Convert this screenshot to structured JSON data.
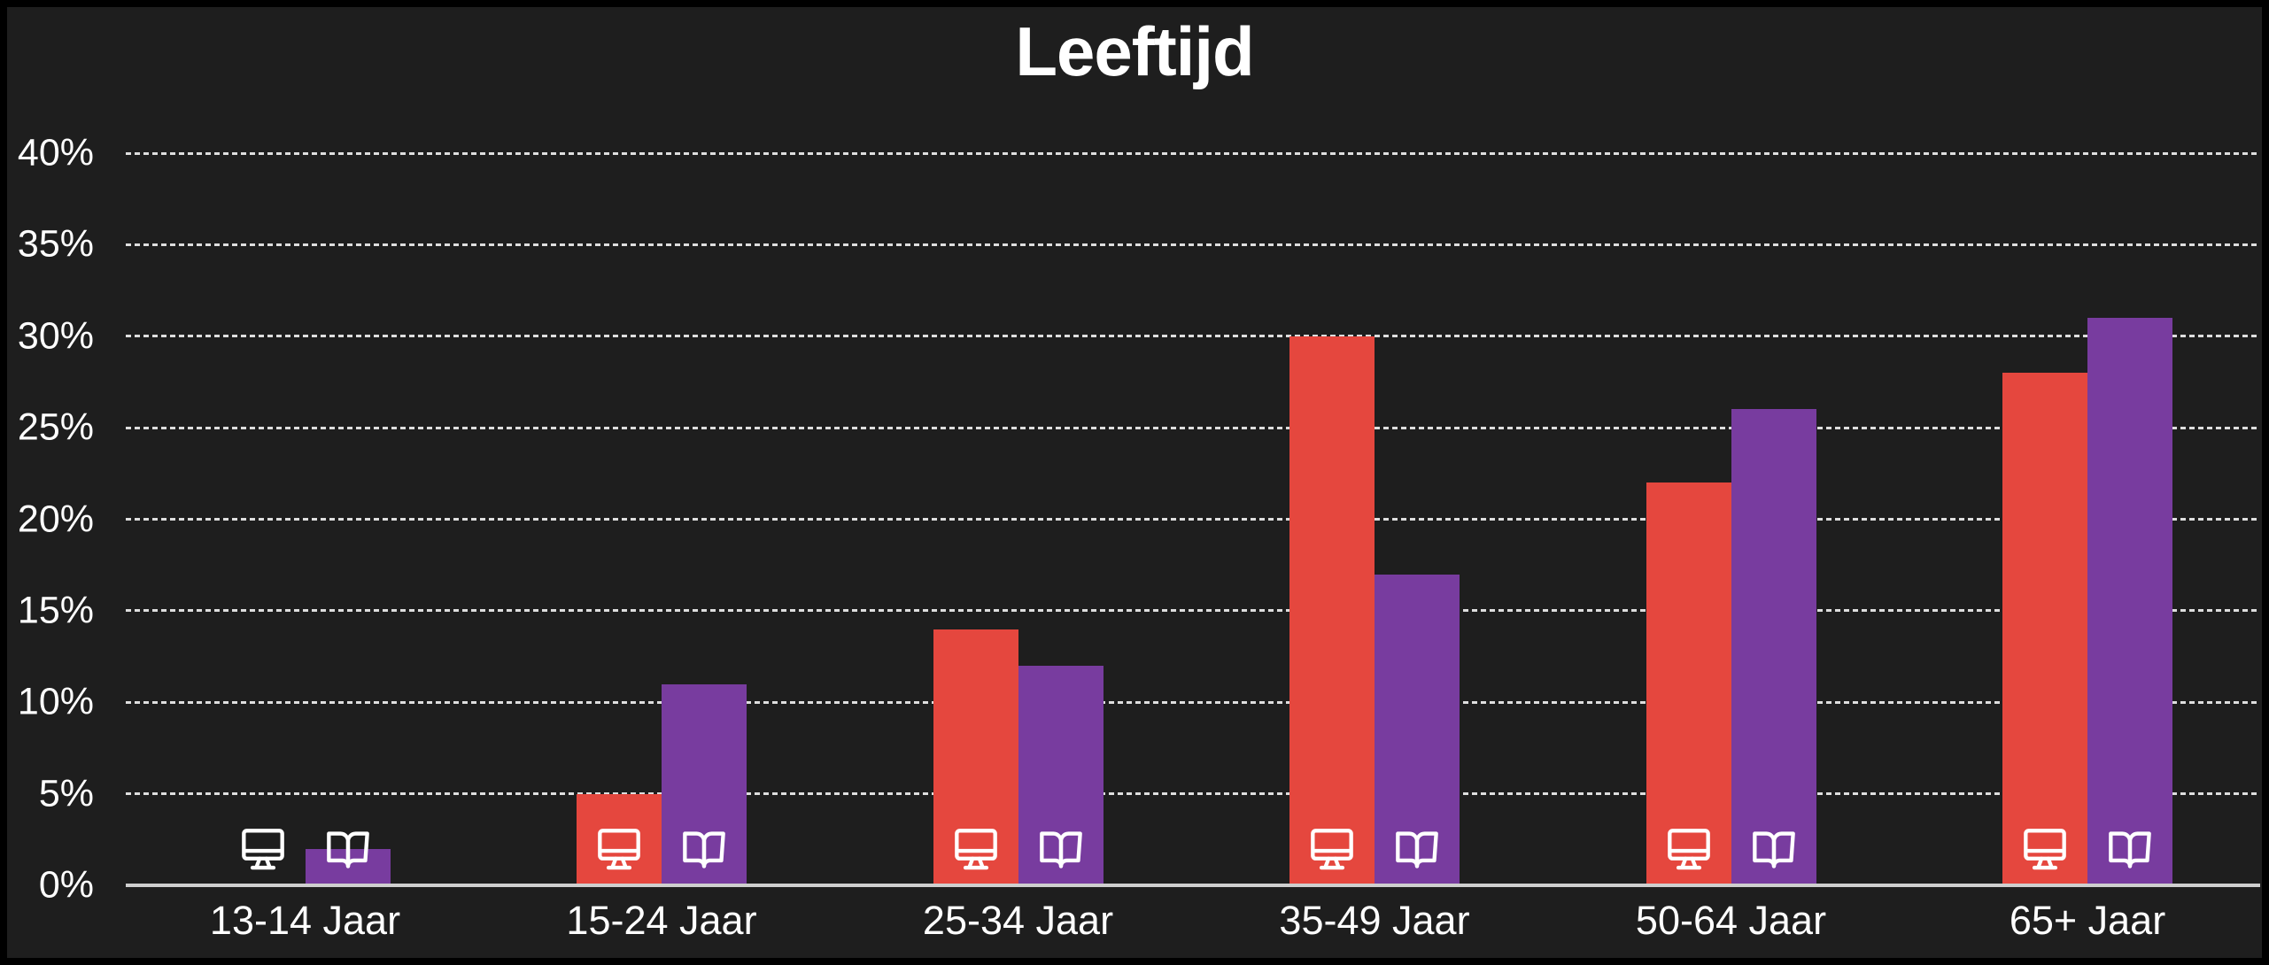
{
  "chart_data": {
    "type": "bar",
    "title": "Leeftijd",
    "categories": [
      "13-14 Jaar",
      "15-24 Jaar",
      "25-34 Jaar",
      "35-49 Jaar",
      "50-64 Jaar",
      "65+ Jaar"
    ],
    "series": [
      {
        "name": "monitor",
        "icon": "monitor-icon",
        "color": "#e5473e",
        "values": [
          0,
          5,
          14,
          30,
          22,
          28
        ]
      },
      {
        "name": "open-book",
        "icon": "open-book-icon",
        "color": "#783c9f",
        "values": [
          2,
          11,
          12,
          17,
          26,
          31
        ]
      }
    ],
    "xlabel": "",
    "ylabel": "",
    "yticks": [
      "0%",
      "5%",
      "10%",
      "15%",
      "20%",
      "25%",
      "30%",
      "35%",
      "40%"
    ],
    "ytick_step_pct": 5,
    "ylim": [
      0,
      40
    ],
    "grid": "horizontal-dashed",
    "legend": "icons-inside-bars",
    "colors": {
      "background": "#1e1e1e",
      "border": "#000000",
      "text": "#ffffff",
      "gridline": "#dedede",
      "axis_line": "#cfcfcf",
      "series_monitor": "#e5473e",
      "series_open_book": "#783c9f",
      "icon_stroke": "#ffffff"
    }
  }
}
